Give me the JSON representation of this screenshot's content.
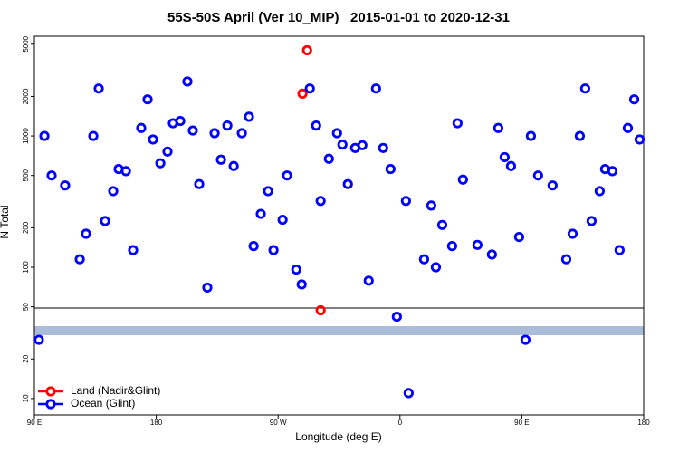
{
  "chart_data": {
    "type": "scatter",
    "title": "55S-50S April (Ver 10_MIP)   2015-01-01 to 2020-12-31",
    "x_label": "Longitude (deg E)",
    "y_label": "N Total",
    "xlim": [
      90,
      540
    ],
    "xticks": [
      {
        "value": 90,
        "label": "90 E"
      },
      {
        "value": 180,
        "label": "180"
      },
      {
        "value": 270,
        "label": "90 W"
      },
      {
        "value": 360,
        "label": "0"
      },
      {
        "value": 450,
        "label": "90 E"
      },
      {
        "value": 540,
        "label": "180"
      }
    ],
    "ylim": [
      7.5,
      5750
    ],
    "y_scale": "log",
    "yticks": [
      10,
      20,
      50,
      100,
      200,
      500,
      1000,
      2000,
      5000
    ],
    "legend": "lower left",
    "series": [
      {
        "name": "Land (Nadir&Glint)",
        "color": "#ff0000",
        "x": [
          291.4,
          288,
          301.4
        ],
        "values": [
          4500,
          2100,
          47
        ]
      },
      {
        "name": "Ocean (Glint)",
        "color": "#0000ff",
        "x": [
          93.3,
          97.4,
          102.7,
          112.7,
          123.5,
          128.1,
          133.5,
          137.5,
          142.2,
          148.2,
          152.2,
          157.6,
          162.9,
          168.9,
          173.6,
          177.6,
          183.0,
          188.3,
          192.3,
          197.7,
          203.0,
          207.0,
          211.7,
          217.7,
          223.1,
          227.8,
          232.5,
          237.2,
          243.2,
          248.5,
          251.9,
          257.2,
          262.6,
          266.6,
          273.3,
          276.6,
          283.4,
          287.4,
          293.4,
          298.1,
          301.4,
          307.5,
          313.5,
          317.5,
          321.5,
          326.9,
          332.2,
          336.9,
          342.3,
          347.6,
          353.0,
          357.7,
          364.4,
          366.4,
          377.8,
          383.1,
          386.5,
          391.2,
          398.5,
          402.5,
          406.5,
          417.2,
          427.9,
          432.6,
          437.3,
          442.0,
          448.0,
          452.7,
          456.7,
          462.0,
          472.7,
          482.8,
          487.5,
          492.8,
          496.8,
          501.5,
          507.5,
          511.5,
          516.9,
          522.2,
          528.3,
          533.0,
          537.0
        ],
        "values": [
          28,
          1000,
          500,
          420,
          115,
          180,
          1000,
          2300,
          225,
          380,
          560,
          540,
          135,
          1150,
          1900,
          940,
          620,
          760,
          1250,
          1300,
          2600,
          1100,
          430,
          70,
          1050,
          660,
          1200,
          590,
          1050,
          1400,
          145,
          255,
          380,
          135,
          230,
          500,
          96,
          74,
          2300,
          1200,
          320,
          670,
          1050,
          860,
          430,
          810,
          850,
          79,
          2300,
          810,
          560,
          42,
          320,
          11,
          115,
          295,
          100,
          210,
          145,
          1250,
          465,
          148,
          125,
          1150,
          690,
          590,
          170,
          28,
          1000,
          500,
          420,
          115,
          180,
          1000,
          2300,
          225,
          380,
          560,
          540,
          135,
          1150,
          1900,
          940
        ]
      }
    ]
  }
}
